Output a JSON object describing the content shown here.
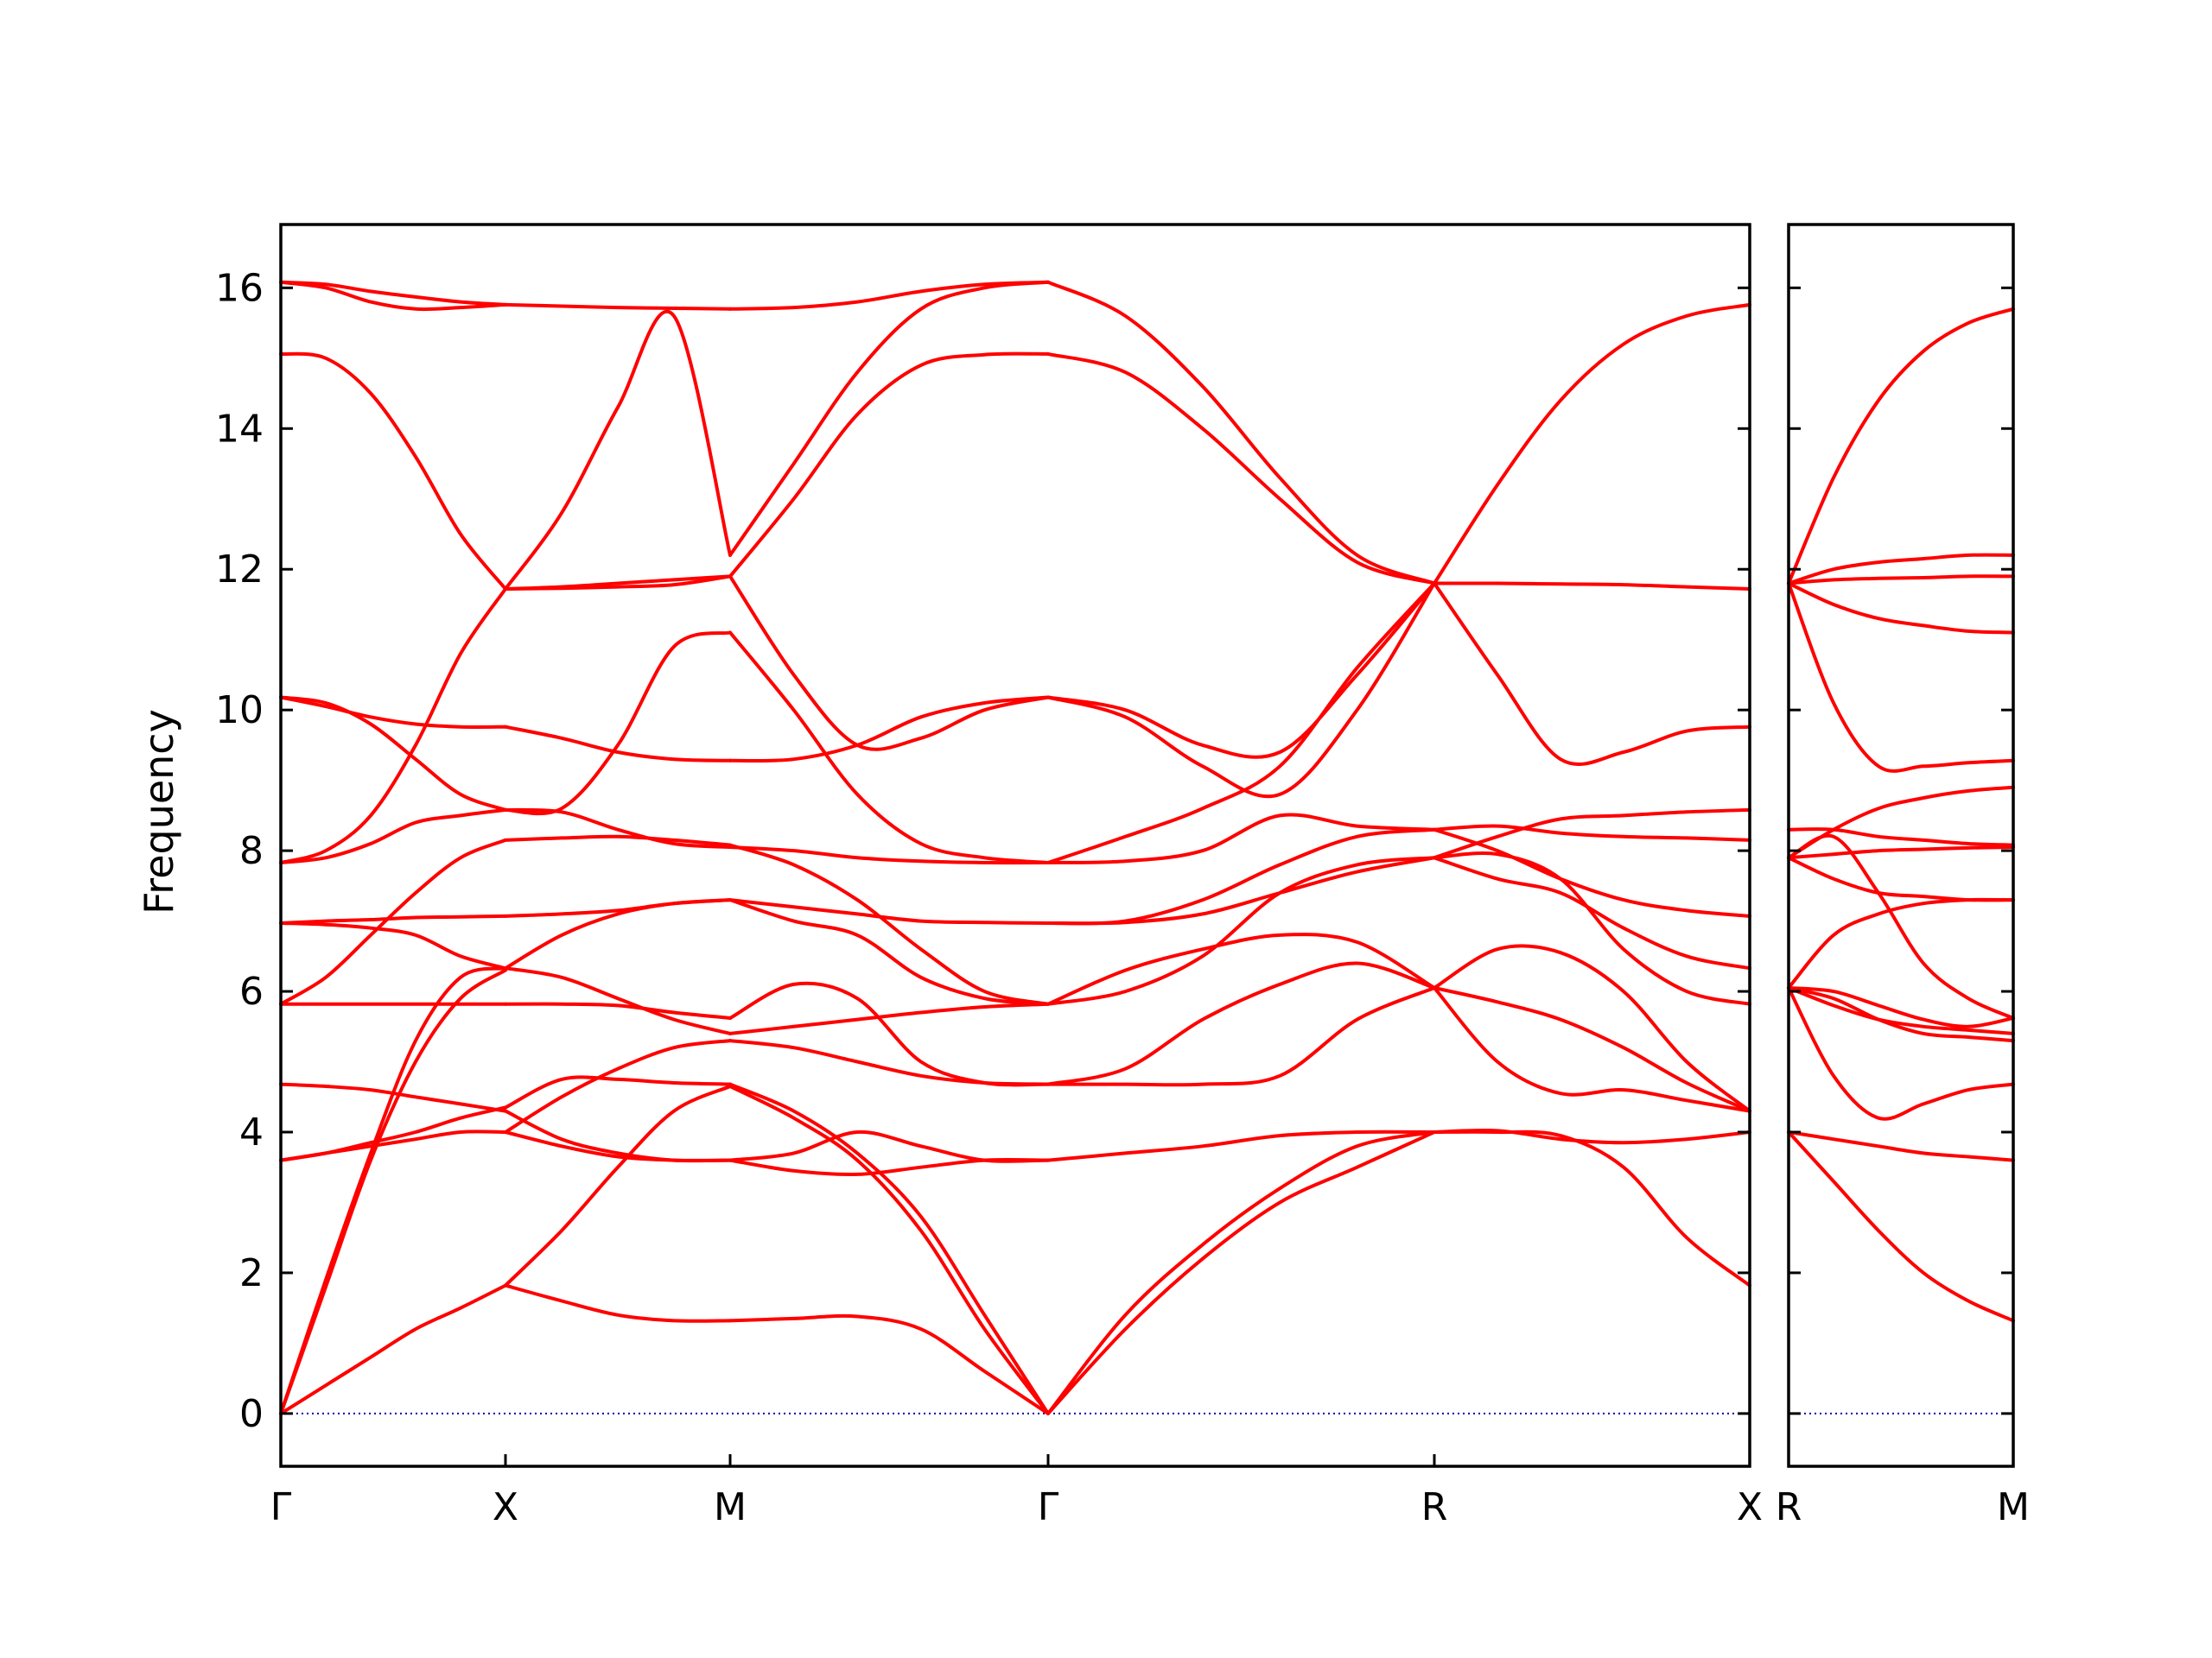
{
  "chart_data": {
    "type": "line",
    "ylabel": "Frequency",
    "ylim": [
      -0.75,
      16.9
    ],
    "y_ticks": [
      "0",
      "2",
      "4",
      "6",
      "8",
      "10",
      "12",
      "14",
      "16"
    ],
    "zero_line": true,
    "colors": {
      "bands": "#ff0000",
      "zero_line": "#0000aa",
      "axes": "#000000"
    },
    "panels": [
      {
        "x_labels": [
          "Γ",
          "X",
          "M",
          "Γ",
          "R",
          "X"
        ],
        "segments": [
          {
            "from": "Γ",
            "to": "X",
            "bands": [
              [
                0,
                0.4,
                0.8,
                1.2,
                1.5,
                1.82
              ],
              [
                0,
                1.8,
                3.6,
                5.0,
                5.9,
                6.3
              ],
              [
                0,
                1.9,
                3.7,
                5.3,
                6.2,
                6.33
              ],
              [
                3.6,
                3.7,
                3.8,
                3.9,
                4.0,
                4.0
              ],
              [
                3.6,
                3.7,
                3.85,
                4.0,
                4.2,
                4.35
              ],
              [
                4.68,
                4.65,
                4.6,
                4.5,
                4.4,
                4.3
              ],
              [
                5.82,
                5.82,
                5.82,
                5.82,
                5.82,
                5.82
              ],
              [
                5.82,
                6.2,
                6.8,
                7.4,
                7.9,
                8.15
              ],
              [
                6.97,
                6.95,
                6.9,
                6.8,
                6.5,
                6.33
              ],
              [
                6.97,
                7.0,
                7.02,
                7.05,
                7.06,
                7.07
              ],
              [
                7.83,
                7.9,
                8.1,
                8.4,
                8.5,
                8.58
              ],
              [
                7.83,
                8.0,
                8.5,
                9.5,
                10.8,
                11.72
              ],
              [
                10.18,
                10.1,
                9.8,
                9.3,
                8.8,
                8.58
              ],
              [
                10.18,
                10.05,
                9.9,
                9.8,
                9.76,
                9.76
              ],
              [
                15.06,
                15.0,
                14.5,
                13.6,
                12.5,
                11.72
              ],
              [
                16.08,
                16.0,
                15.8,
                15.7,
                15.72,
                15.76
              ],
              [
                16.08,
                16.05,
                15.95,
                15.87,
                15.8,
                15.76
              ]
            ]
          },
          {
            "from": "X",
            "to": "M",
            "bands": [
              [
                1.82,
                1.6,
                1.4,
                1.32,
                1.32
              ],
              [
                1.82,
                2.6,
                3.5,
                4.3,
                4.65
              ],
              [
                4.0,
                3.8,
                3.65,
                3.6,
                3.6
              ],
              [
                4.3,
                3.9,
                3.7,
                3.6,
                3.6
              ],
              [
                4.0,
                4.5,
                4.9,
                5.2,
                5.3
              ],
              [
                4.35,
                4.75,
                4.75,
                4.7,
                4.68
              ],
              [
                5.82,
                5.82,
                5.8,
                5.7,
                5.62
              ],
              [
                6.33,
                6.2,
                5.9,
                5.6,
                5.4
              ],
              [
                6.33,
                6.8,
                7.1,
                7.25,
                7.3
              ],
              [
                7.07,
                7.1,
                7.15,
                7.25,
                7.3
              ],
              [
                8.15,
                8.18,
                8.2,
                8.15,
                8.08
              ],
              [
                8.58,
                8.55,
                8.3,
                8.1,
                8.05
              ],
              [
                8.58,
                8.6,
                9.5,
                10.9,
                11.1
              ],
              [
                9.76,
                9.6,
                9.4,
                9.3,
                9.28
              ],
              [
                11.72,
                11.75,
                11.8,
                11.85,
                11.9
              ],
              [
                11.72,
                11.73,
                11.75,
                11.78,
                11.9
              ],
              [
                11.72,
                12.8,
                14.3,
                15.6,
                12.2
              ],
              [
                15.76,
                15.74,
                15.72,
                15.71,
                15.7
              ]
            ]
          },
          {
            "from": "M",
            "to": "Γ",
            "bands": [
              [
                1.32,
                1.35,
                1.38,
                1.2,
                0.6,
                0
              ],
              [
                4.65,
                4.2,
                3.6,
                2.6,
                1.2,
                0
              ],
              [
                4.68,
                4.3,
                3.7,
                2.8,
                1.4,
                0
              ],
              [
                3.6,
                3.7,
                4.0,
                3.8,
                3.6,
                3.6
              ],
              [
                3.6,
                3.45,
                3.4,
                3.5,
                3.6,
                3.6
              ],
              [
                5.3,
                5.2,
                5.0,
                4.8,
                4.7,
                4.68
              ],
              [
                5.4,
                5.5,
                5.6,
                5.7,
                5.78,
                5.82
              ],
              [
                5.62,
                6.1,
                5.9,
                5.0,
                4.7,
                4.68
              ],
              [
                7.3,
                7.0,
                6.8,
                6.2,
                5.9,
                5.82
              ],
              [
                7.3,
                7.2,
                7.1,
                7.0,
                6.98,
                6.97
              ],
              [
                8.08,
                7.8,
                7.3,
                6.6,
                6.0,
                5.82
              ],
              [
                8.05,
                8.0,
                7.9,
                7.85,
                7.83,
                7.83
              ],
              [
                9.28,
                9.3,
                9.5,
                9.9,
                10.1,
                10.18
              ],
              [
                11.1,
                10.0,
                8.8,
                8.1,
                7.9,
                7.83
              ],
              [
                11.9,
                10.5,
                9.5,
                9.6,
                10.0,
                10.18
              ],
              [
                12.2,
                13.5,
                14.8,
                15.7,
                16.0,
                16.08
              ],
              [
                11.9,
                13.0,
                14.2,
                14.9,
                15.05,
                15.06
              ],
              [
                15.7,
                15.72,
                15.8,
                15.95,
                16.05,
                16.08
              ]
            ]
          },
          {
            "from": "Γ",
            "to": "R",
            "bands": [
              [
                0,
                1.4,
                2.4,
                3.2,
                3.8,
                4.0
              ],
              [
                0,
                1.2,
                2.2,
                3.0,
                3.5,
                4.0
              ],
              [
                3.6,
                3.7,
                3.8,
                3.95,
                4.0,
                4.0
              ],
              [
                4.68,
                4.68,
                4.68,
                4.8,
                5.6,
                6.05
              ],
              [
                4.68,
                4.9,
                5.6,
                6.1,
                6.4,
                6.05
              ],
              [
                5.82,
                6.3,
                6.6,
                6.8,
                6.7,
                6.05
              ],
              [
                5.82,
                6.0,
                6.5,
                7.4,
                7.8,
                7.9
              ],
              [
                6.97,
                6.98,
                7.1,
                7.4,
                7.7,
                7.9
              ],
              [
                6.97,
                7.0,
                7.3,
                7.8,
                8.2,
                8.3
              ],
              [
                7.83,
                7.85,
                8.0,
                8.5,
                8.35,
                8.3
              ],
              [
                10.18,
                10.0,
                9.5,
                9.4,
                10.5,
                11.8
              ],
              [
                10.18,
                9.9,
                9.2,
                8.8,
                10.0,
                11.8
              ],
              [
                7.83,
                8.2,
                8.6,
                9.2,
                10.6,
                11.8
              ],
              [
                16.08,
                15.6,
                14.6,
                13.3,
                12.2,
                11.8
              ],
              [
                15.06,
                14.8,
                14.0,
                13.0,
                12.1,
                11.8
              ]
            ]
          },
          {
            "from": "R",
            "to": "X",
            "bands": [
              [
                4.0,
                4.0,
                3.95,
                3.5,
                2.5,
                1.82
              ],
              [
                4.0,
                4.02,
                3.9,
                3.85,
                3.9,
                4.0
              ],
              [
                6.05,
                5.0,
                4.55,
                4.6,
                4.45,
                4.3
              ],
              [
                6.05,
                6.6,
                6.55,
                6.0,
                5.0,
                4.3
              ],
              [
                6.05,
                5.85,
                5.6,
                5.2,
                4.7,
                4.3
              ],
              [
                7.9,
                7.95,
                7.6,
                6.6,
                6.0,
                5.82
              ],
              [
                7.9,
                7.6,
                7.4,
                6.9,
                6.5,
                6.33
              ],
              [
                8.3,
                8.35,
                8.25,
                8.2,
                8.18,
                8.15
              ],
              [
                7.9,
                8.2,
                8.45,
                8.5,
                8.55,
                8.58
              ],
              [
                8.3,
                8.0,
                7.6,
                7.3,
                7.15,
                7.07
              ],
              [
                11.8,
                10.5,
                9.3,
                9.4,
                9.7,
                9.76
              ],
              [
                11.8,
                11.8,
                11.79,
                11.78,
                11.75,
                11.72
              ],
              [
                11.8,
                13.2,
                14.4,
                15.2,
                15.6,
                15.76
              ]
            ]
          }
        ]
      },
      {
        "x_labels": [
          "R",
          "M"
        ],
        "segments": [
          {
            "from": "R",
            "to": "M",
            "bands": [
              [
                4.0,
                3.3,
                2.6,
                2.0,
                1.6,
                1.32
              ],
              [
                4.0,
                3.9,
                3.8,
                3.7,
                3.65,
                3.6
              ],
              [
                6.05,
                4.8,
                4.2,
                4.4,
                4.6,
                4.68
              ],
              [
                6.05,
                5.9,
                5.6,
                5.4,
                5.35,
                5.3
              ],
              [
                6.05,
                5.8,
                5.6,
                5.5,
                5.45,
                5.4
              ],
              [
                6.05,
                6.0,
                5.8,
                5.6,
                5.5,
                5.62
              ],
              [
                6.05,
                6.8,
                7.1,
                7.25,
                7.3,
                7.3
              ],
              [
                7.9,
                7.6,
                7.4,
                7.35,
                7.3,
                7.3
              ],
              [
                7.9,
                8.2,
                7.4,
                6.4,
                5.9,
                5.62
              ],
              [
                8.3,
                8.3,
                8.2,
                8.15,
                8.1,
                8.08
              ],
              [
                7.9,
                7.95,
                8.0,
                8.02,
                8.04,
                8.05
              ],
              [
                7.9,
                8.3,
                8.6,
                8.75,
                8.85,
                8.9
              ],
              [
                11.8,
                10.1,
                9.2,
                9.2,
                9.25,
                9.28
              ],
              [
                11.8,
                11.5,
                11.3,
                11.2,
                11.12,
                11.1
              ],
              [
                11.8,
                11.85,
                11.87,
                11.88,
                11.9,
                11.9
              ],
              [
                11.8,
                12.0,
                12.1,
                12.15,
                12.2,
                12.2
              ],
              [
                11.8,
                13.3,
                14.4,
                15.1,
                15.5,
                15.7
              ]
            ]
          }
        ]
      }
    ]
  }
}
